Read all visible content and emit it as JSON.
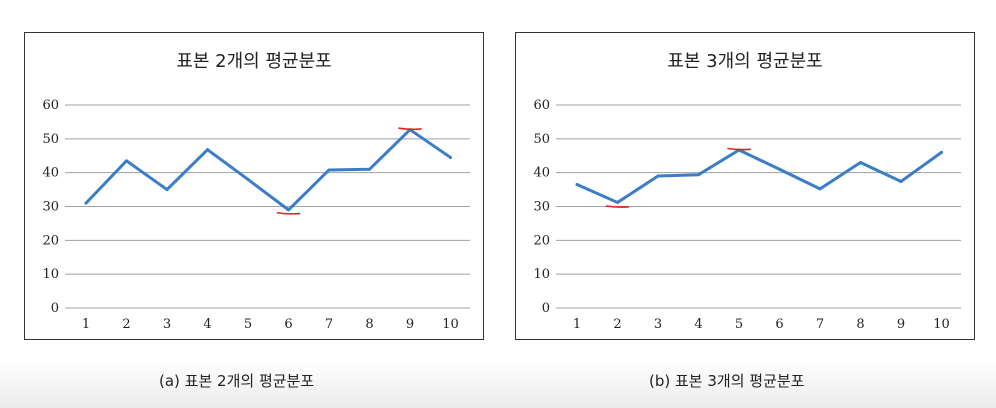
{
  "chart_data": [
    {
      "type": "line",
      "title": "표본 2개의 평균분포",
      "x": [
        1,
        2,
        3,
        4,
        5,
        6,
        7,
        8,
        9,
        10
      ],
      "series": [
        {
          "values": [
            31,
            43.5,
            35,
            46.8,
            38,
            29,
            40.8,
            41,
            52.7,
            44.5
          ],
          "color": "#3a7dc9"
        }
      ],
      "ylim": [
        0,
        60
      ],
      "yticks": [
        0,
        10,
        20,
        30,
        40,
        50,
        60
      ],
      "grid": true,
      "annotations": [
        {
          "x": 6,
          "y": 28,
          "color": "#e02020",
          "mark": "min-underline"
        },
        {
          "x": 9,
          "y": 53,
          "color": "#e02020",
          "mark": "max-overline"
        }
      ],
      "caption": "(a) 표본 2개의 평균분포"
    },
    {
      "type": "line",
      "title": "표본 3개의 평균분포",
      "x": [
        1,
        2,
        3,
        4,
        5,
        6,
        7,
        8,
        9,
        10
      ],
      "series": [
        {
          "values": [
            36.5,
            31.2,
            39,
            39.4,
            46.7,
            41,
            35.2,
            43,
            37.4,
            46
          ],
          "color": "#3a7dc9"
        }
      ],
      "ylim": [
        0,
        60
      ],
      "yticks": [
        0,
        10,
        20,
        30,
        40,
        50,
        60
      ],
      "grid": true,
      "annotations": [
        {
          "x": 2,
          "y": 30,
          "color": "#e02020",
          "mark": "min-underline"
        },
        {
          "x": 5,
          "y": 47,
          "color": "#e02020",
          "mark": "max-overline"
        }
      ],
      "caption": "(b) 표본 3개의 평균분포"
    }
  ]
}
